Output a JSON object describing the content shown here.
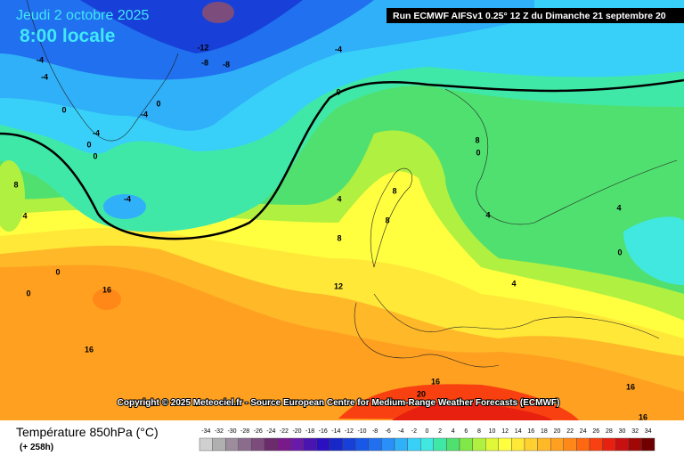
{
  "header": {
    "date": "Jeudi 2 octobre 2025",
    "time": "8:00 locale",
    "run": "Run ECMWF AIFSv1 0.25° 12 Z du Dimanche 21 septembre 20"
  },
  "copyright": "Copyright © 2025 Meteociel.fr - Source European Centre for Medium-Range Weather Forecasts (ECMWF)",
  "footer": {
    "title": "Température 850hPa (°C)",
    "lead": "(+ 258h)"
  },
  "contour_labels": [
    -4,
    -4,
    0,
    -4,
    0,
    0,
    -4,
    -12,
    -8,
    -8,
    -4,
    0,
    0,
    -4,
    8,
    4,
    0,
    0,
    16,
    16,
    4,
    8,
    12,
    8,
    8,
    8,
    0,
    4,
    4,
    4,
    0,
    16,
    20,
    16,
    16
  ],
  "legend": {
    "values": [
      -34,
      -32,
      -30,
      -28,
      -26,
      -24,
      -22,
      -20,
      -18,
      -16,
      -14,
      -12,
      -10,
      -8,
      -6,
      -4,
      -2,
      0,
      2,
      4,
      6,
      8,
      10,
      12,
      14,
      16,
      18,
      20,
      22,
      24,
      26,
      28,
      30,
      32,
      34
    ],
    "colors": [
      "#d0d0d0",
      "#b0b0b0",
      "#9c8c9c",
      "#8c6c8c",
      "#7c4c7c",
      "#6c2c6c",
      "#7a1a8a",
      "#6a1aa8",
      "#4a14b0",
      "#2a10c0",
      "#1828c8",
      "#1840d8",
      "#1858e8",
      "#2070f0",
      "#2890f8",
      "#30b0f8",
      "#38d0f8",
      "#40e8e0",
      "#40e8a8",
      "#50e070",
      "#80e848",
      "#b0f040",
      "#e0f838",
      "#ffff40",
      "#ffe838",
      "#ffd030",
      "#ffb828",
      "#ffa020",
      "#ff8818",
      "#ff6810",
      "#f84010",
      "#e82010",
      "#c81010",
      "#a00808",
      "#700000"
    ]
  }
}
